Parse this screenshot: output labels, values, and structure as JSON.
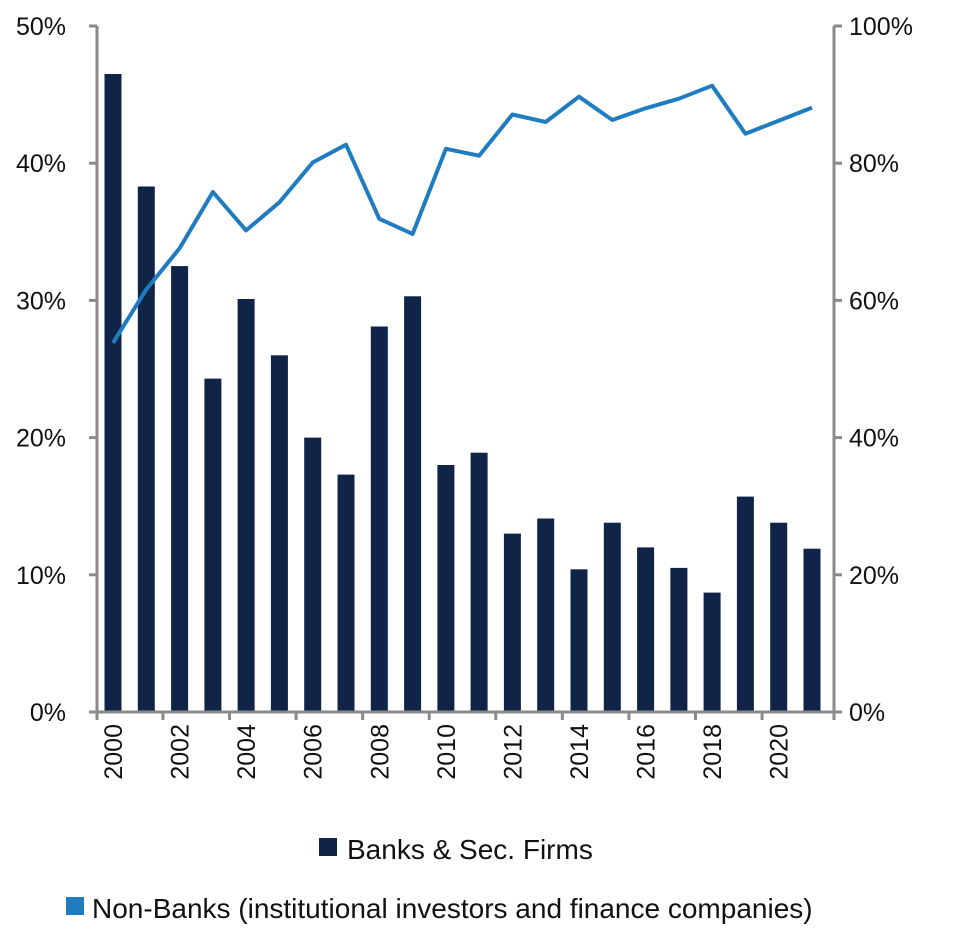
{
  "chart_data": {
    "type": "bar",
    "title": "",
    "xlabel": "",
    "x": [
      2000,
      2001,
      2002,
      2003,
      2004,
      2005,
      2006,
      2007,
      2008,
      2009,
      2010,
      2011,
      2012,
      2013,
      2014,
      2015,
      2016,
      2017,
      2018,
      2019,
      2020,
      2021
    ],
    "x_tick_labels": [
      "2000",
      "2002",
      "2004",
      "2006",
      "2008",
      "2010",
      "2012",
      "2014",
      "2016",
      "2018",
      "2020"
    ],
    "left_axis": {
      "ylim": [
        0,
        50
      ],
      "ticks": [
        0,
        10,
        20,
        30,
        40,
        50
      ],
      "tick_labels": [
        "0%",
        "10%",
        "20%",
        "30%",
        "40%",
        "50%"
      ]
    },
    "right_axis": {
      "ylim": [
        0,
        100
      ],
      "ticks": [
        0,
        20,
        40,
        60,
        80,
        100
      ],
      "tick_labels": [
        "0%",
        "20%",
        "40%",
        "60%",
        "80%",
        "100%"
      ]
    },
    "series": [
      {
        "name": "Banks & Sec. Firms",
        "kind": "bar",
        "axis": "left",
        "color": "#0f2447",
        "values": [
          46.5,
          38.3,
          32.5,
          24.3,
          30.1,
          26.0,
          20.0,
          17.3,
          28.1,
          30.3,
          18.0,
          18.9,
          13.0,
          14.1,
          10.4,
          13.8,
          12.0,
          10.5,
          8.7,
          15.7,
          13.8,
          11.9
        ]
      },
      {
        "name": "Non-Banks (institutional investors and finance companies)",
        "kind": "line",
        "axis": "right",
        "color": "#1f7cc1",
        "values": [
          53.8,
          61.6,
          67.6,
          75.8,
          70.2,
          74.3,
          80.1,
          82.7,
          71.9,
          69.7,
          82.1,
          81.1,
          87.1,
          86.0,
          89.7,
          86.3,
          88.0,
          89.4,
          91.3,
          84.3,
          86.2,
          88.1
        ]
      }
    ],
    "grid": false,
    "legend_position": "bottom"
  }
}
